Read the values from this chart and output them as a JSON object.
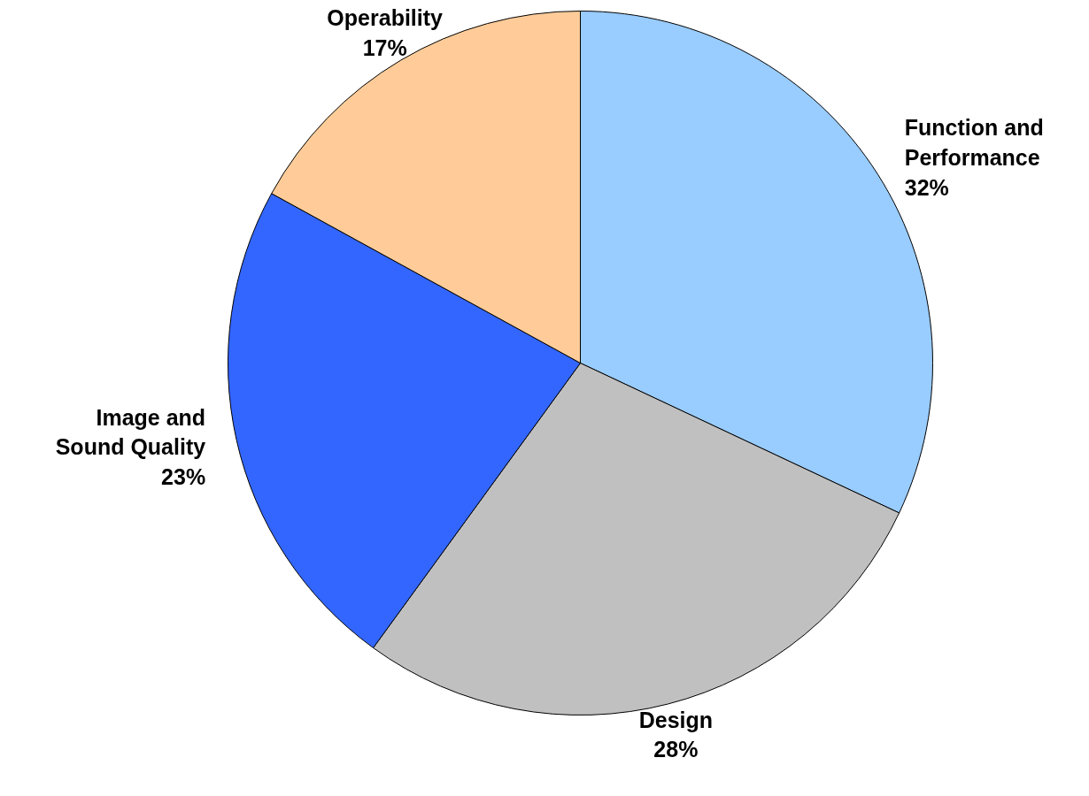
{
  "chart_data": {
    "type": "pie",
    "categories": [
      "Function and Performance",
      "Design",
      "Image and Sound Quality",
      "Operability"
    ],
    "values": [
      32,
      28,
      23,
      17
    ],
    "colors": [
      "#99ccff",
      "#c0c0c0",
      "#3366ff",
      "#ffcc99"
    ],
    "value_labels": [
      "32%",
      "28%",
      "23%",
      "17%"
    ]
  }
}
